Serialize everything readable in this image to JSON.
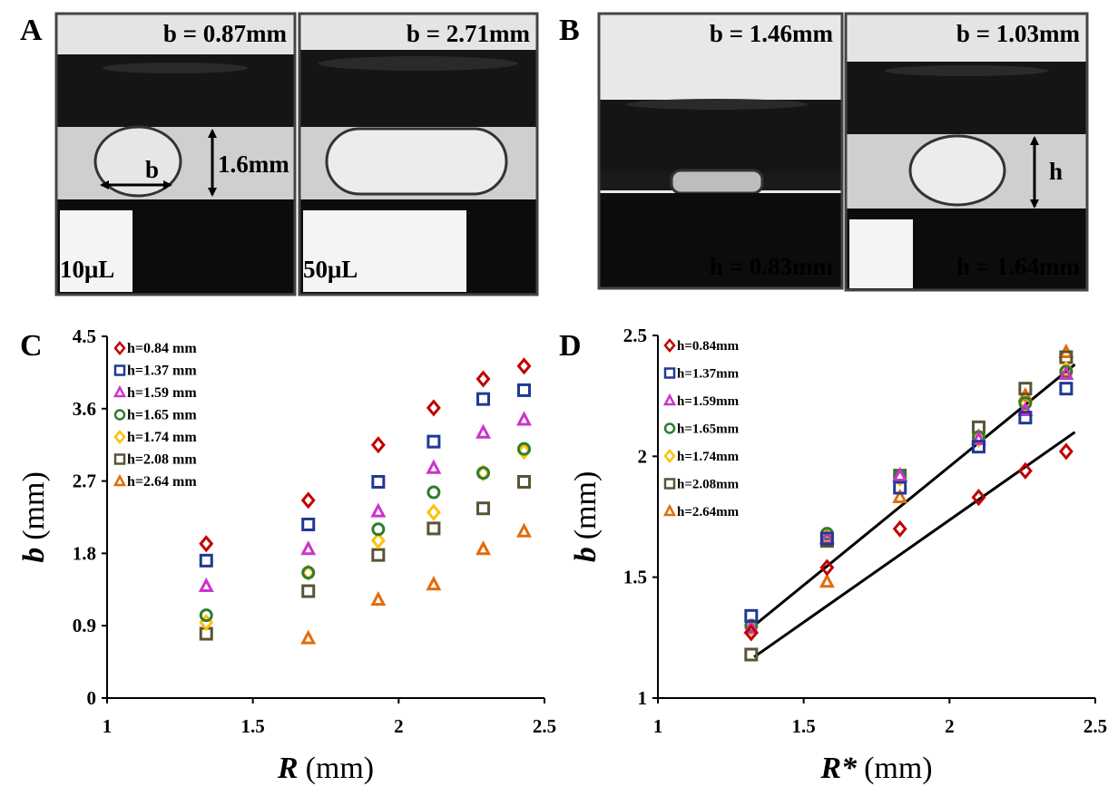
{
  "panel_labels": [
    "A",
    "B",
    "C",
    "D"
  ],
  "photos": {
    "a_left": {
      "top": "b = 0.87mm",
      "width_mark": "b",
      "height_mark": "1.6mm",
      "volume": "10μL"
    },
    "a_right": {
      "top": "b = 2.71mm",
      "volume": "50μL"
    },
    "b_left": {
      "top": "b = 1.46mm",
      "bottom": "h = 0.83mm"
    },
    "b_right": {
      "top": "b = 1.03mm",
      "height_mark": "h",
      "bottom": "h = 1.64mm"
    }
  },
  "chart_data": [
    {
      "type": "scatter",
      "xlabel_symbol": "R",
      "xlabel_unit": "(mm)",
      "ylabel_symbol": "b",
      "ylabel_unit": "(mm)",
      "x": [
        1.34,
        1.69,
        1.93,
        2.12,
        2.29,
        2.43
      ],
      "xlim": [
        1,
        2.5
      ],
      "xticks": [
        1,
        1.5,
        2,
        2.5
      ],
      "ylim": [
        0,
        4.5
      ],
      "yticks": [
        0,
        0.9,
        1.8,
        2.7,
        3.6,
        4.5
      ],
      "series": [
        {
          "name": "h=0.84 mm",
          "color": "#c00000",
          "marker": "diamond",
          "values": [
            1.92,
            2.46,
            3.15,
            3.61,
            3.97,
            4.13
          ]
        },
        {
          "name": "h=1.37 mm",
          "color": "#1f3a93",
          "marker": "square",
          "values": [
            1.71,
            2.16,
            2.69,
            3.19,
            3.72,
            3.83
          ]
        },
        {
          "name": "h=1.59 mm",
          "color": "#cc33cc",
          "marker": "triangle",
          "values": [
            1.39,
            1.85,
            2.32,
            2.86,
            3.3,
            3.46
          ]
        },
        {
          "name": "h=1.65 mm",
          "color": "#2e7d32",
          "marker": "circle",
          "values": [
            1.03,
            1.56,
            2.1,
            2.56,
            2.8,
            3.1
          ]
        },
        {
          "name": "h=1.74 mm",
          "color": "#ffc000",
          "marker": "diamond",
          "values": [
            0.94,
            1.56,
            1.96,
            2.31,
            2.8,
            3.07
          ]
        },
        {
          "name": "h=2.08 mm",
          "color": "#5b5335",
          "marker": "square",
          "values": [
            0.8,
            1.33,
            1.78,
            2.11,
            2.36,
            2.69
          ]
        },
        {
          "name": "h=2.64 mm",
          "color": "#e36c09",
          "marker": "triangle",
          "values": [
            null,
            0.74,
            1.22,
            1.41,
            1.85,
            2.07
          ]
        }
      ]
    },
    {
      "type": "scatter",
      "xlabel_symbol": "R*",
      "xlabel_unit": "(mm)",
      "ylabel_symbol": "b",
      "ylabel_unit": "(mm)",
      "x": [
        1.32,
        1.58,
        1.83,
        2.1,
        2.26,
        2.4
      ],
      "xlim": [
        1,
        2.5
      ],
      "xticks": [
        1,
        1.5,
        2,
        2.5
      ],
      "ylim": [
        1,
        2.5
      ],
      "yticks": [
        1,
        1.5,
        2,
        2.5
      ],
      "series": [
        {
          "name": "h=0.84mm",
          "color": "#c00000",
          "marker": "diamond",
          "values": [
            1.27,
            1.54,
            1.7,
            1.83,
            1.94,
            2.02
          ]
        },
        {
          "name": "h=1.37mm",
          "color": "#1f3a93",
          "marker": "square",
          "values": [
            1.34,
            1.66,
            1.87,
            2.04,
            2.16,
            2.28
          ]
        },
        {
          "name": "h=1.59mm",
          "color": "#cc33cc",
          "marker": "triangle",
          "values": [
            1.29,
            1.66,
            1.92,
            2.07,
            2.19,
            2.34
          ]
        },
        {
          "name": "h=1.65mm",
          "color": "#2e7d32",
          "marker": "circle",
          "values": [
            1.3,
            1.68,
            1.92,
            2.08,
            2.22,
            2.35
          ]
        },
        {
          "name": "h=1.74mm",
          "color": "#ffc000",
          "marker": "diamond",
          "values": [
            1.29,
            1.67,
            1.91,
            2.07,
            2.22,
            2.36
          ]
        },
        {
          "name": "h=2.08mm",
          "color": "#5b5335",
          "marker": "square",
          "values": [
            1.18,
            1.65,
            1.92,
            2.12,
            2.28,
            2.41
          ]
        },
        {
          "name": "h=2.64mm",
          "color": "#e36c09",
          "marker": "triangle",
          "values": [
            null,
            1.48,
            1.83,
            2.08,
            2.25,
            2.43
          ]
        }
      ],
      "trendlines": [
        {
          "color": "#000000",
          "x": [
            1.33,
            2.43
          ],
          "values": [
            1.3,
            2.38
          ]
        },
        {
          "color": "#000000",
          "x": [
            1.33,
            2.43
          ],
          "values": [
            1.17,
            2.1
          ]
        }
      ]
    }
  ]
}
